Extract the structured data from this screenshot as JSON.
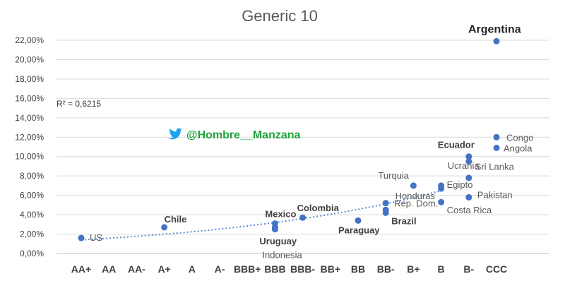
{
  "chart_data": {
    "type": "scatter",
    "title": "Generic 10",
    "categories": [
      "AA+",
      "AA",
      "AA-",
      "A+",
      "A",
      "A-",
      "BBB+",
      "BBB",
      "BBB-",
      "BB+",
      "BB",
      "BB-",
      "B+",
      "B",
      "B-",
      "CCC"
    ],
    "y_ticks": [
      "0,00%",
      "2,00%",
      "4,00%",
      "6,00%",
      "8,00%",
      "10,00%",
      "12,00%",
      "14,00%",
      "16,00%",
      "18,00%",
      "20,00%",
      "22,00%"
    ],
    "ylim": [
      0,
      22
    ],
    "grid": true,
    "trendline": {
      "style": "dotted",
      "label": "R² = 0,6215"
    },
    "points": [
      {
        "label": "US",
        "category": "AA+",
        "value": 1.6
      },
      {
        "label": "Chile",
        "category": "A+",
        "value": 2.7
      },
      {
        "label": "Mexico",
        "category": "BBB",
        "value": 3.1
      },
      {
        "label": "Uruguay",
        "category": "BBB",
        "value": 2.7
      },
      {
        "label": "Indonesia",
        "category": "BBB",
        "value": 2.5
      },
      {
        "label": "Colombia",
        "category": "BBB-",
        "value": 3.7
      },
      {
        "label": "Paraguay",
        "category": "BB",
        "value": 3.4
      },
      {
        "label": "Rep. Dom.",
        "category": "BB-",
        "value": 5.2
      },
      {
        "label": "Brazil",
        "category": "BB-",
        "value": 4.2
      },
      {
        "label": "",
        "category": "BB-",
        "value": 4.5
      },
      {
        "label": "Turquia",
        "category": "B+",
        "value": 7.0
      },
      {
        "label": "Honduras",
        "category": "B",
        "value": 6.7
      },
      {
        "label": "Egipto",
        "category": "B",
        "value": 7.0
      },
      {
        "label": "Costa Rica",
        "category": "B",
        "value": 5.3
      },
      {
        "label": "Ecuador",
        "category": "B-",
        "value": 10.0
      },
      {
        "label": "Sri Lanka",
        "category": "B-",
        "value": 9.5
      },
      {
        "label": "Ucrania",
        "category": "B-",
        "value": 7.8
      },
      {
        "label": "Pakistan",
        "category": "B-",
        "value": 5.8
      },
      {
        "label": "Argentina",
        "category": "CCC",
        "value": 21.9
      },
      {
        "label": "Congo",
        "category": "CCC",
        "value": 12.0
      },
      {
        "label": "Angola",
        "category": "CCC",
        "value": 10.9
      }
    ],
    "watermark": "@Hombre__Manzana",
    "colors": {
      "points": "#4472c4",
      "grid": "#d9d9d9",
      "twitter": "#1da1f2",
      "handle": "#1fa33b"
    }
  }
}
